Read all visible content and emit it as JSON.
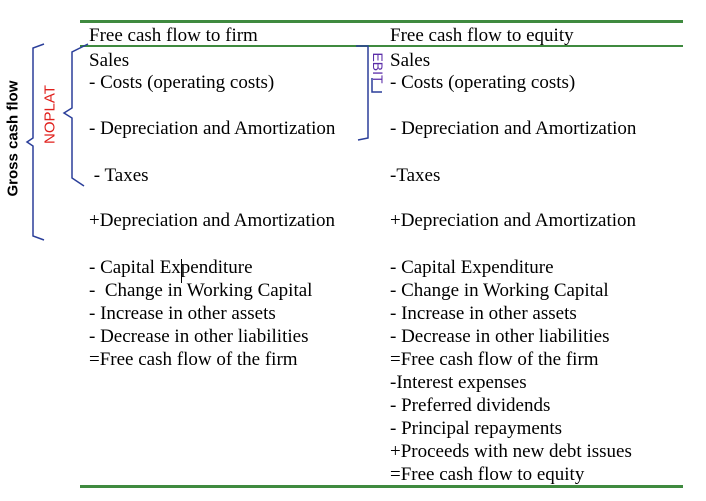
{
  "colors": {
    "rule": "#3f8a3f",
    "bracket_blue": "#2b3f9a",
    "noplat_red": "#e0201c",
    "ebit_purple": "#5b2da8"
  },
  "headers": {
    "left": "Free cash flow to firm",
    "right": "Free cash flow to equity"
  },
  "labels": {
    "gross_cash_flow": "Gross cash flow",
    "noplat": "NOPLAT",
    "ebit": "EBIT"
  },
  "left": [
    "Sales",
    "- Costs (operating costs)",
    "- Depreciation and Amortization",
    " - Taxes",
    "+Depreciation and Amortization",
    "- Capital Expenditure",
    "-  Change in Working Capital",
    "- Increase in other assets",
    "- Decrease in other liabilities",
    "=Free cash flow of the firm"
  ],
  "right": [
    "Sales",
    "- Costs (operating costs)",
    "- Depreciation and Amortization",
    "-Taxes",
    "+Depreciation and Amortization",
    "- Capital Expenditure",
    "- Change in Working Capital",
    "- Increase in other assets",
    "- Decrease in other liabilities",
    "=Free cash flow of the firm",
    "-Interest expenses",
    "- Preferred dividends",
    "- Principal repayments",
    "+Proceeds with new debt issues",
    "=Free cash flow to equity"
  ]
}
